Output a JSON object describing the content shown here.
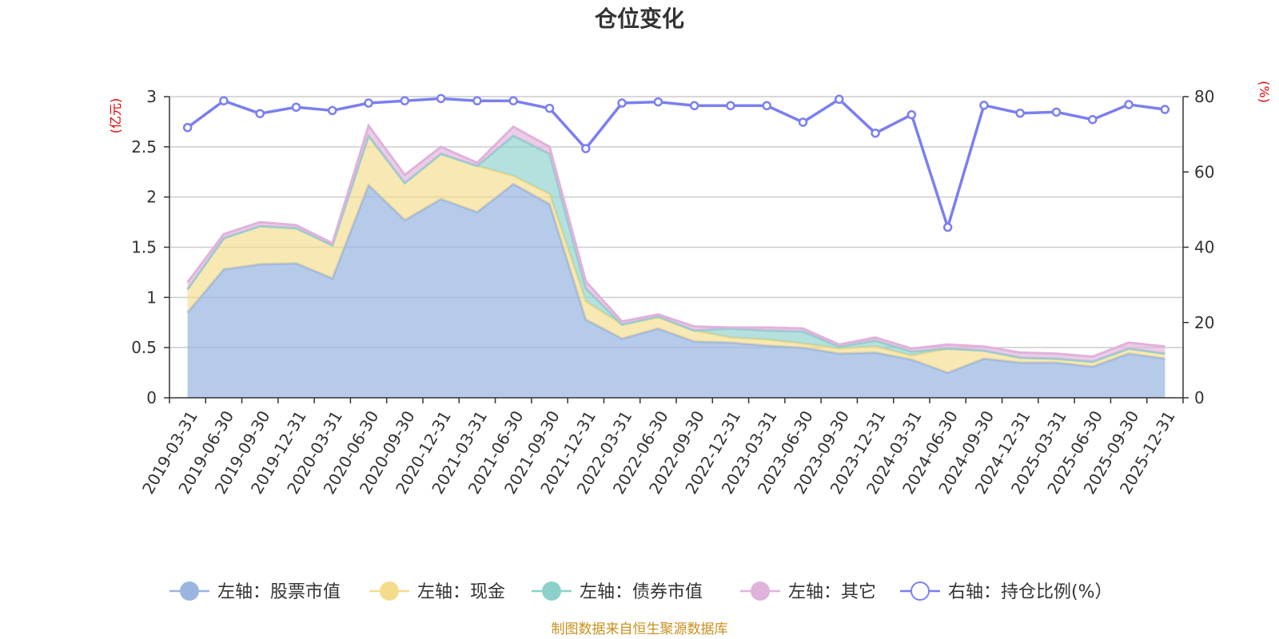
{
  "chart_data": {
    "type": "area",
    "title": "仓位变化",
    "left_unit": "(亿元)",
    "right_unit": "(%)",
    "left_ylim": [
      0,
      3
    ],
    "left_ticks": [
      "0",
      "0.5",
      "1",
      "1.5",
      "2",
      "2.5",
      "3"
    ],
    "right_ylim": [
      0,
      80
    ],
    "right_ticks": [
      "0",
      "20",
      "40",
      "60",
      "80"
    ],
    "categories": [
      "2019-03-31",
      "2019-06-30",
      "2019-09-30",
      "2019-12-31",
      "2020-03-31",
      "2020-06-30",
      "2020-09-30",
      "2020-12-31",
      "2021-03-31",
      "2021-06-30",
      "2021-09-30",
      "2021-12-31",
      "2022-03-31",
      "2022-06-30",
      "2022-09-30",
      "2022-12-31",
      "2023-03-31",
      "2023-06-30",
      "2023-09-30",
      "2023-12-31",
      "2024-03-31",
      "2024-06-30",
      "2024-09-30",
      "2024-12-31",
      "2025-03-31",
      "2025-06-30",
      "2025-09-30",
      "2025-12-31"
    ],
    "series": [
      {
        "name": "左轴：股票市值",
        "axis": "left",
        "color": "#9ab6e0",
        "values": [
          0.85,
          1.28,
          1.33,
          1.34,
          1.19,
          2.12,
          1.77,
          1.98,
          1.85,
          2.13,
          1.93,
          0.78,
          0.59,
          0.69,
          0.56,
          0.55,
          0.52,
          0.5,
          0.44,
          0.45,
          0.38,
          0.25,
          0.39,
          0.35,
          0.35,
          0.31,
          0.44,
          0.39
        ]
      },
      {
        "name": "左轴：现金",
        "axis": "left",
        "color": "#f5dc8c",
        "values": [
          0.23,
          0.31,
          0.38,
          0.35,
          0.33,
          0.49,
          0.37,
          0.45,
          0.46,
          0.08,
          0.1,
          0.18,
          0.14,
          0.11,
          0.11,
          0.05,
          0.06,
          0.04,
          0.05,
          0.06,
          0.04,
          0.24,
          0.08,
          0.05,
          0.04,
          0.05,
          0.05,
          0.05
        ]
      },
      {
        "name": "左轴：债券市值",
        "axis": "left",
        "color": "#8cd0cc",
        "values": [
          0,
          0,
          0,
          0,
          0,
          0,
          0,
          0,
          0,
          0.4,
          0.4,
          0.13,
          0,
          0.01,
          0,
          0.09,
          0.09,
          0.12,
          0.02,
          0.06,
          0.04,
          0,
          0,
          0,
          0,
          0,
          0,
          0
        ]
      },
      {
        "name": "左轴：其它",
        "axis": "left",
        "color": "#e0b2dc",
        "values": [
          0.07,
          0.04,
          0.04,
          0.03,
          0.02,
          0.1,
          0.08,
          0.07,
          0.03,
          0.09,
          0.07,
          0.07,
          0.03,
          0.02,
          0.04,
          0.01,
          0.03,
          0.03,
          0.02,
          0.03,
          0.03,
          0.04,
          0.04,
          0.05,
          0.05,
          0.05,
          0.06,
          0.07
        ]
      },
      {
        "name": "右轴：持仓比例(%）",
        "axis": "right",
        "color": "#7b7ff0",
        "values": [
          71.8,
          78.9,
          75.5,
          77.2,
          76.3,
          78.3,
          78.9,
          79.5,
          78.9,
          78.9,
          76.9,
          66.2,
          78.3,
          78.6,
          77.6,
          77.6,
          77.6,
          73.2,
          79.3,
          70.3,
          75.2,
          45.3,
          77.7,
          75.6,
          75.9,
          73.9,
          77.9,
          76.6
        ]
      }
    ]
  },
  "source_note": "制图数据来自恒生聚源数据库"
}
